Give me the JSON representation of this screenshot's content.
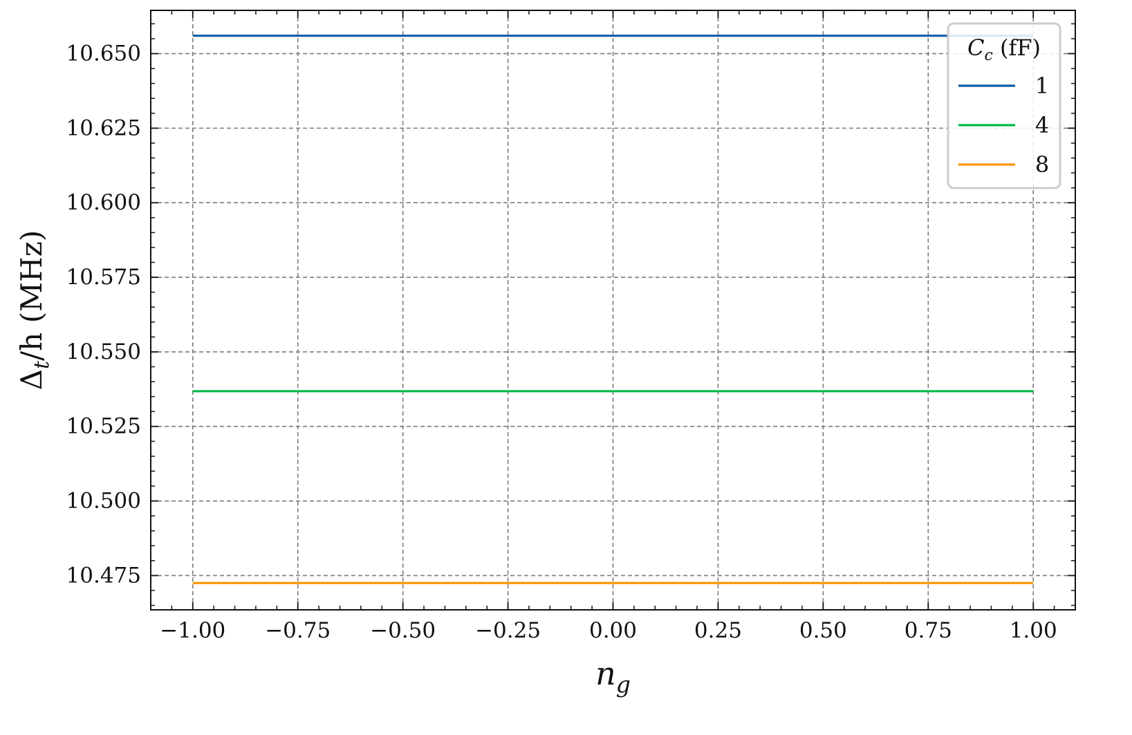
{
  "chart_data": {
    "type": "line",
    "xlabel": {
      "base": "n",
      "sub": "g"
    },
    "ylabel": {
      "base": "Δ",
      "sub": "t",
      "rest": "/h (MHz)"
    },
    "xlim": [
      -1.1,
      1.1
    ],
    "ylim": [
      10.4635,
      10.6645
    ],
    "xticks": [
      -1.0,
      -0.75,
      -0.5,
      -0.25,
      0.0,
      0.25,
      0.5,
      0.75,
      1.0
    ],
    "xtick_labels": [
      "−1.00",
      "−0.75",
      "−0.50",
      "−0.25",
      "0.00",
      "0.25",
      "0.50",
      "0.75",
      "1.00"
    ],
    "yticks": [
      10.475,
      10.5,
      10.525,
      10.55,
      10.575,
      10.6,
      10.625,
      10.65
    ],
    "ytick_labels": [
      "10.475",
      "10.500",
      "10.525",
      "10.550",
      "10.575",
      "10.600",
      "10.625",
      "10.650"
    ],
    "grid": true,
    "legend": {
      "title_base": "C",
      "title_sub": "c",
      "title_rest": " (fF)",
      "placement": "top-right"
    },
    "series": [
      {
        "name": "1",
        "color": "#0c5da5",
        "x": [
          -1.0,
          1.0
        ],
        "y": [
          10.656,
          10.656
        ]
      },
      {
        "name": "4",
        "color": "#00b945",
        "x": [
          -1.0,
          1.0
        ],
        "y": [
          10.5368,
          10.5368
        ]
      },
      {
        "name": "8",
        "color": "#ff9500",
        "x": [
          -1.0,
          1.0
        ],
        "y": [
          10.4725,
          10.4725
        ]
      }
    ]
  }
}
